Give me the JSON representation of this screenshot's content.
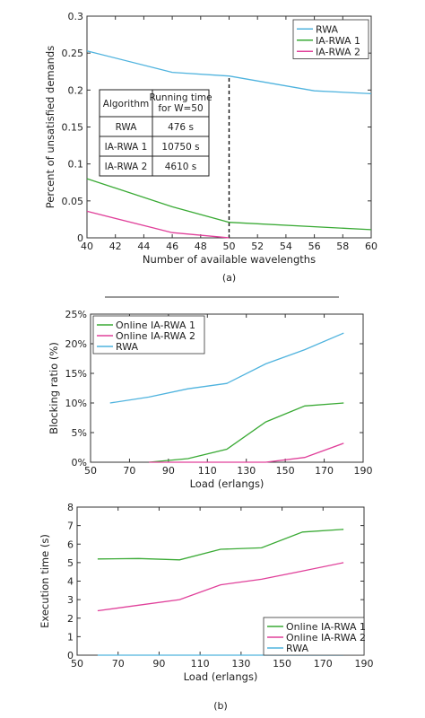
{
  "chart_data": [
    {
      "type": "line",
      "xlabel": "Number of available wavelengths",
      "ylabel": "Percent of unsatisfied demands",
      "xlim": [
        40,
        60
      ],
      "ylim": [
        0,
        0.3
      ],
      "xticks": [
        "40",
        "42",
        "44",
        "46",
        "48",
        "50",
        "52",
        "54",
        "56",
        "58",
        "60"
      ],
      "yticks": [
        "0",
        "0.05",
        "0.1",
        "0.15",
        "0.2",
        "0.25",
        "0.3"
      ],
      "legend_position": "top-right",
      "marker_x": 50,
      "series": [
        {
          "name": "RWA",
          "color": "#4fb3de",
          "x": [
            40,
            46,
            50,
            56,
            60
          ],
          "y": [
            0.253,
            0.224,
            0.219,
            0.199,
            0.195
          ]
        },
        {
          "name": "IA-RWA 1",
          "color": "#3aaa35",
          "x": [
            40,
            46,
            50,
            60
          ],
          "y": [
            0.08,
            0.042,
            0.021,
            0.011
          ]
        },
        {
          "name": "IA-RWA 2",
          "color": "#e0409a",
          "x": [
            40,
            46,
            50
          ],
          "y": [
            0.036,
            0.007,
            0.0
          ]
        }
      ],
      "table": {
        "headers": [
          "Algorithm",
          "Running time\nfor W=50"
        ],
        "rows": [
          [
            "RWA",
            "476 s"
          ],
          [
            "IA-RWA 1",
            "10750 s"
          ],
          [
            "IA-RWA 2",
            "4610 s"
          ]
        ]
      },
      "caption": "(a)"
    },
    {
      "type": "line",
      "xlabel": "Load (erlangs)",
      "ylabel": "Blocking ratio (%)",
      "xlim": [
        50,
        190
      ],
      "ylim": [
        0,
        25
      ],
      "xticks": [
        "50",
        "70",
        "90",
        "110",
        "130",
        "150",
        "170",
        "190"
      ],
      "yticks": [
        "0%",
        "5%",
        "10%",
        "15%",
        "20%",
        "25%"
      ],
      "legend_position": "top-left",
      "series": [
        {
          "name": "Online IA-RWA 1",
          "color": "#3aaa35",
          "x": [
            80,
            100,
            120,
            140,
            160,
            180
          ],
          "y": [
            0,
            0.6,
            2.2,
            6.8,
            9.5,
            10
          ]
        },
        {
          "name": "Online IA-RWA 2",
          "color": "#e0409a",
          "x": [
            80,
            100,
            120,
            140,
            160,
            180
          ],
          "y": [
            0,
            0,
            0,
            0,
            0.8,
            3.2
          ]
        },
        {
          "name": "RWA",
          "color": "#4fb3de",
          "x": [
            60,
            80,
            100,
            120,
            140,
            160,
            180
          ],
          "y": [
            10,
            11,
            12.4,
            13.3,
            16.6,
            19,
            21.8
          ]
        }
      ]
    },
    {
      "type": "line",
      "xlabel": "Load (erlangs)",
      "ylabel": "Execution time (s)",
      "xlim": [
        50,
        190
      ],
      "ylim": [
        0,
        8
      ],
      "xticks": [
        "50",
        "70",
        "90",
        "110",
        "130",
        "150",
        "170",
        "190"
      ],
      "yticks": [
        "0",
        "1",
        "2",
        "3",
        "4",
        "5",
        "6",
        "7",
        "8"
      ],
      "legend_position": "bottom-right",
      "series": [
        {
          "name": "Online IA-RWA 1",
          "color": "#3aaa35",
          "x": [
            60,
            80,
            100,
            120,
            140,
            160,
            180
          ],
          "y": [
            5.2,
            5.22,
            5.15,
            5.72,
            5.8,
            6.65,
            6.8
          ]
        },
        {
          "name": "Online IA-RWA 2",
          "color": "#e0409a",
          "x": [
            60,
            80,
            100,
            120,
            140,
            160,
            180
          ],
          "y": [
            2.4,
            2.7,
            3.0,
            3.8,
            4.1,
            4.55,
            5.0
          ]
        },
        {
          "name": "RWA",
          "color": "#4fb3de",
          "x": [
            60,
            80,
            100,
            120,
            140,
            160,
            180
          ],
          "y": [
            0,
            0,
            0,
            0,
            0,
            0,
            0
          ]
        }
      ],
      "caption": "(b)"
    }
  ]
}
